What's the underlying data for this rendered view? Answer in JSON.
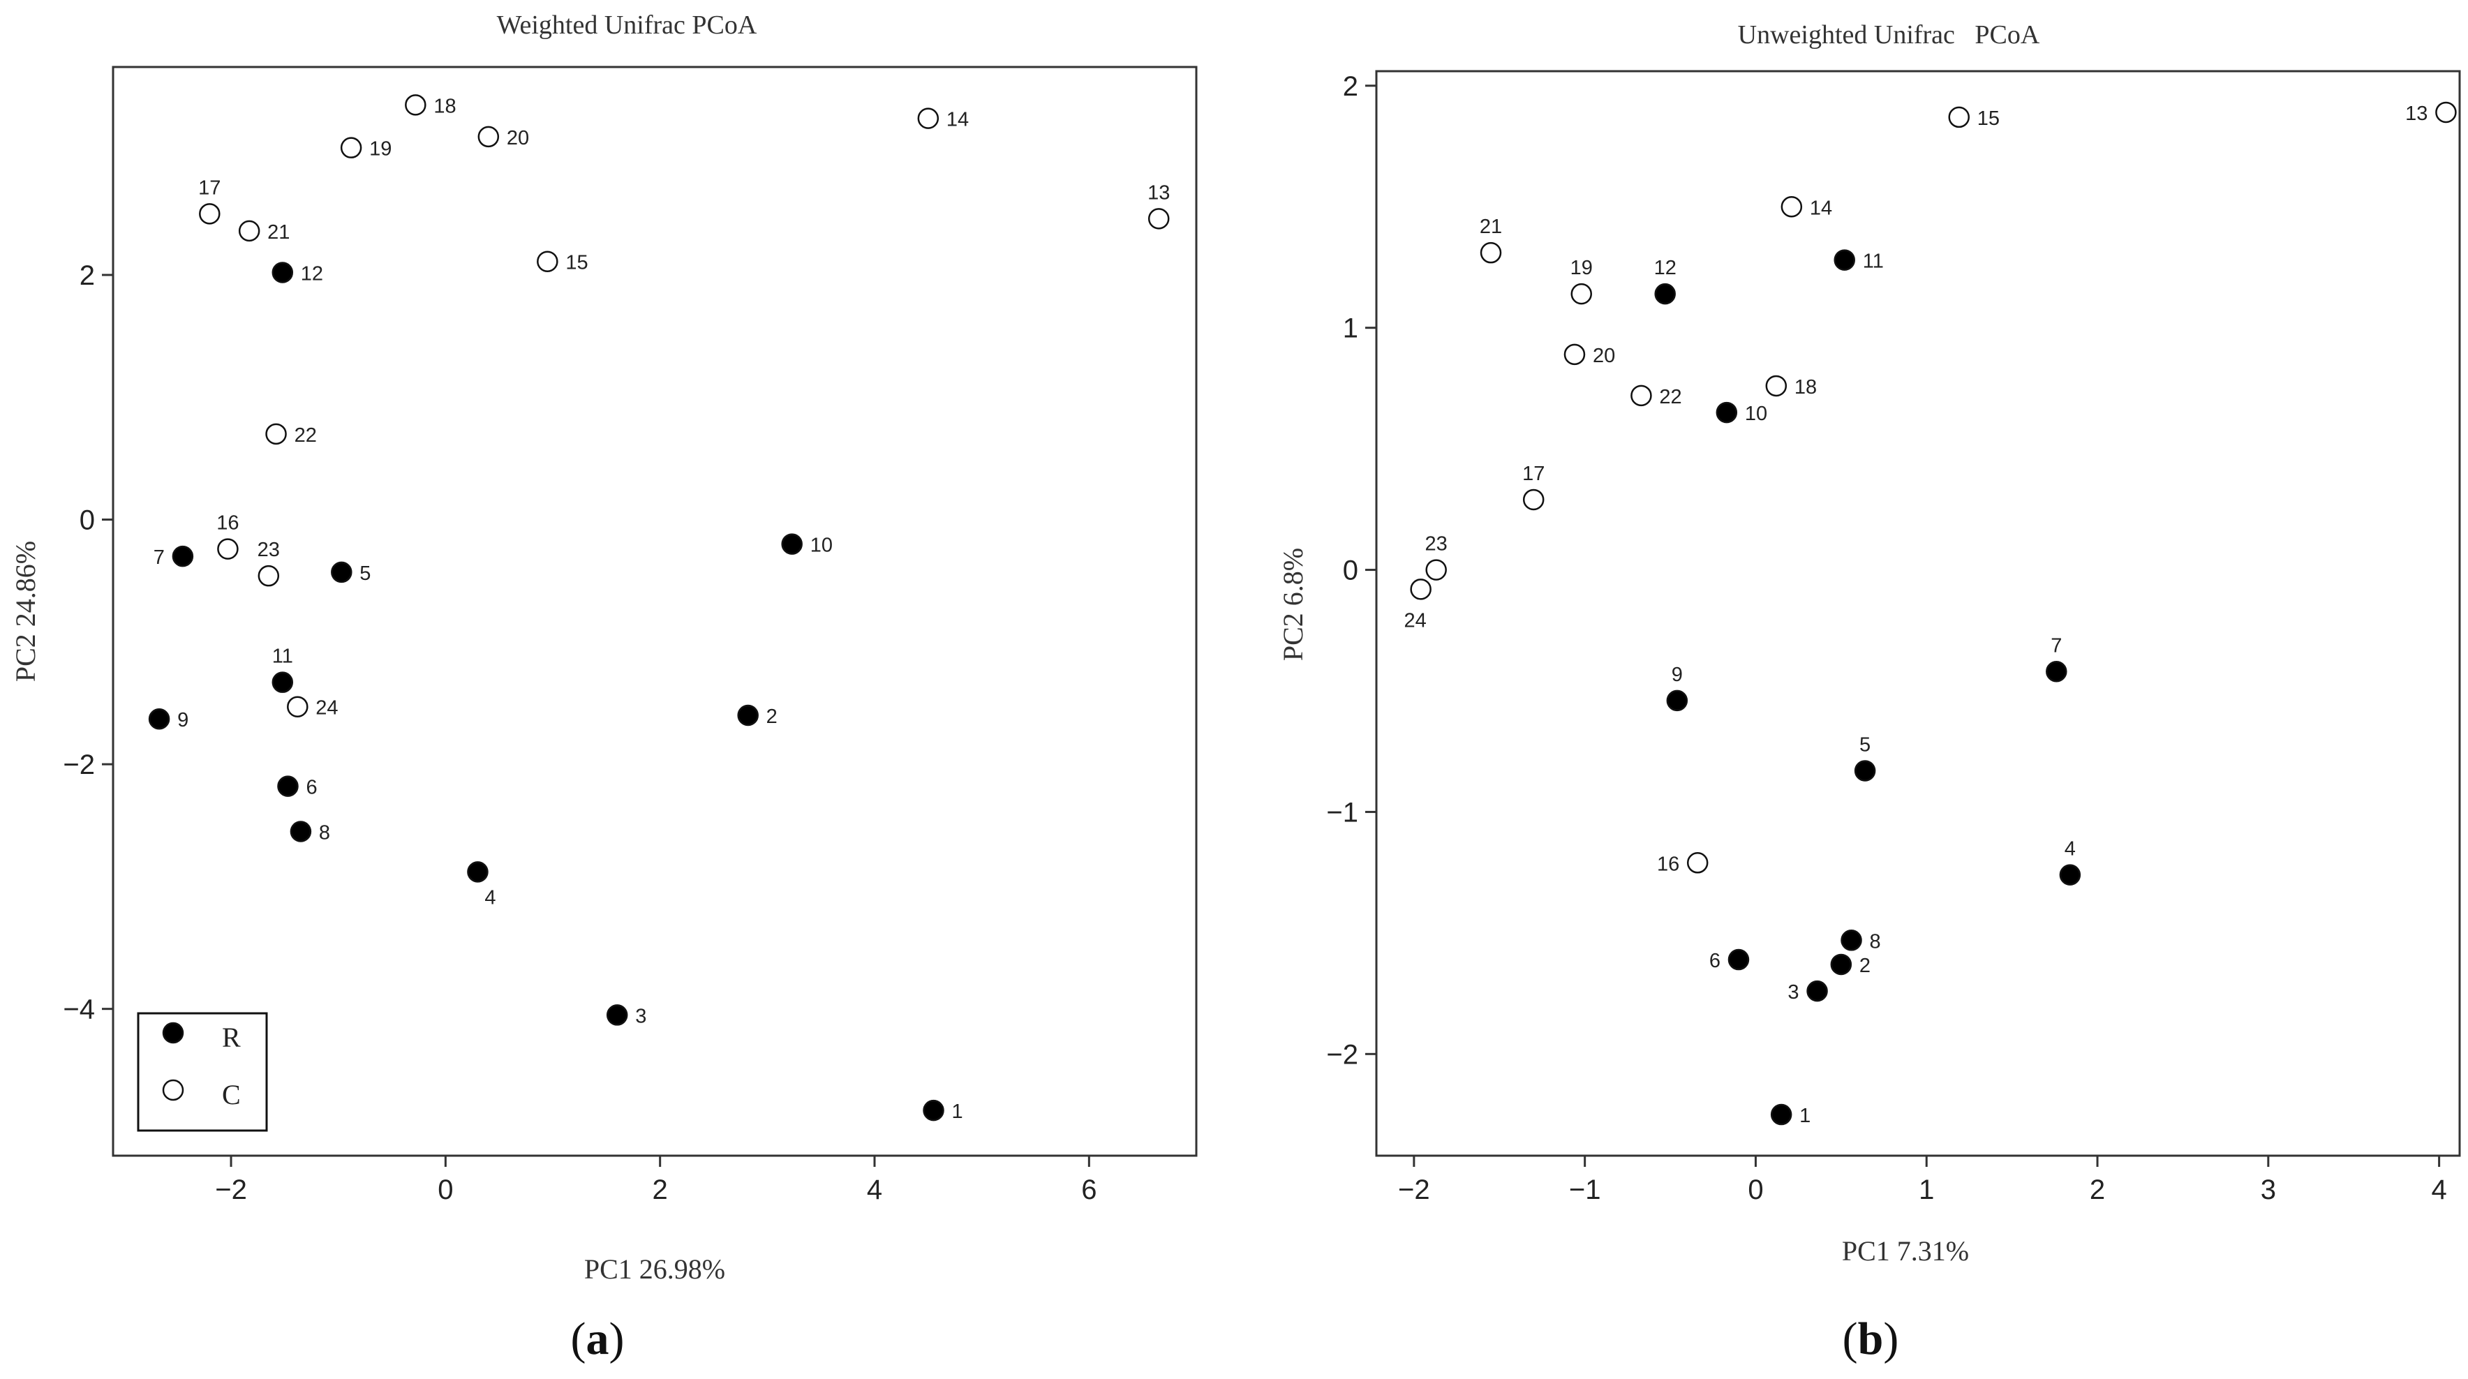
{
  "colors": {
    "R": "#000000",
    "C": "#ffffff",
    "stroke": "#111111",
    "axis": "#333333"
  },
  "chart_data": [
    {
      "type": "scatter",
      "panel": "a",
      "panel_label": "a",
      "title": "Weighted Unifrac PCoA",
      "xlabel": "PC1 26.98%",
      "ylabel": "PC2 24.86%",
      "xlim": [
        -3.1,
        7.0
      ],
      "ylim": [
        -5.2,
        3.7
      ],
      "xticks": [
        -2,
        0,
        2,
        4,
        6
      ],
      "yticks": [
        -4,
        -2,
        0,
        2
      ],
      "legend": {
        "position": "bottom-left",
        "entries": [
          {
            "name": "R",
            "group": "R"
          },
          {
            "name": "C",
            "group": "C"
          }
        ]
      },
      "points": [
        {
          "id": "1",
          "x": 4.55,
          "y": -4.83,
          "group": "R",
          "label_pos": "right"
        },
        {
          "id": "2",
          "x": 2.82,
          "y": -1.6,
          "group": "R",
          "label_pos": "right"
        },
        {
          "id": "3",
          "x": 1.6,
          "y": -4.05,
          "group": "R",
          "label_pos": "right"
        },
        {
          "id": "4",
          "x": 0.3,
          "y": -2.88,
          "group": "R",
          "label_pos": "below-right"
        },
        {
          "id": "5",
          "x": -0.97,
          "y": -0.43,
          "group": "R",
          "label_pos": "right"
        },
        {
          "id": "6",
          "x": -1.47,
          "y": -2.18,
          "group": "R",
          "label_pos": "right"
        },
        {
          "id": "7",
          "x": -2.45,
          "y": -0.3,
          "group": "R",
          "label_pos": "left"
        },
        {
          "id": "8",
          "x": -1.35,
          "y": -2.55,
          "group": "R",
          "label_pos": "right"
        },
        {
          "id": "9",
          "x": -2.67,
          "y": -1.63,
          "group": "R",
          "label_pos": "right"
        },
        {
          "id": "10",
          "x": 3.23,
          "y": -0.2,
          "group": "R",
          "label_pos": "right"
        },
        {
          "id": "11",
          "x": -1.52,
          "y": -1.33,
          "group": "R",
          "label_pos": "above"
        },
        {
          "id": "12",
          "x": -1.52,
          "y": 2.02,
          "group": "R",
          "label_pos": "right"
        },
        {
          "id": "13",
          "x": 6.65,
          "y": 2.46,
          "group": "C",
          "label_pos": "above"
        },
        {
          "id": "14",
          "x": 4.5,
          "y": 3.28,
          "group": "C",
          "label_pos": "right"
        },
        {
          "id": "15",
          "x": 0.95,
          "y": 2.11,
          "group": "C",
          "label_pos": "right"
        },
        {
          "id": "16",
          "x": -2.03,
          "y": -0.24,
          "group": "C",
          "label_pos": "above"
        },
        {
          "id": "17",
          "x": -2.2,
          "y": 2.5,
          "group": "C",
          "label_pos": "above"
        },
        {
          "id": "18",
          "x": -0.28,
          "y": 3.39,
          "group": "C",
          "label_pos": "right"
        },
        {
          "id": "19",
          "x": -0.88,
          "y": 3.04,
          "group": "C",
          "label_pos": "right"
        },
        {
          "id": "20",
          "x": 0.4,
          "y": 3.13,
          "group": "C",
          "label_pos": "right"
        },
        {
          "id": "21",
          "x": -1.83,
          "y": 2.36,
          "group": "C",
          "label_pos": "right"
        },
        {
          "id": "22",
          "x": -1.58,
          "y": 0.7,
          "group": "C",
          "label_pos": "right"
        },
        {
          "id": "23",
          "x": -1.65,
          "y": -0.46,
          "group": "C",
          "label_pos": "above"
        },
        {
          "id": "24",
          "x": -1.38,
          "y": -1.53,
          "group": "C",
          "label_pos": "right"
        }
      ]
    },
    {
      "type": "scatter",
      "panel": "b",
      "panel_label": "b",
      "title": "Unweighted Unifrac   PCoA",
      "xlabel": "PC1 7.31%",
      "ylabel": "PC2 6.8%",
      "xlim": [
        -2.22,
        4.12
      ],
      "ylim": [
        -2.42,
        2.06
      ],
      "xticks": [
        -2,
        -1,
        0,
        1,
        2,
        3,
        4
      ],
      "yticks": [
        -2,
        -1,
        0,
        1,
        2
      ],
      "points": [
        {
          "id": "1",
          "x": 0.15,
          "y": -2.25,
          "group": "R",
          "label_pos": "right"
        },
        {
          "id": "2",
          "x": 0.5,
          "y": -1.63,
          "group": "R",
          "label_pos": "right"
        },
        {
          "id": "3",
          "x": 0.36,
          "y": -1.74,
          "group": "R",
          "label_pos": "left"
        },
        {
          "id": "4",
          "x": 1.84,
          "y": -1.26,
          "group": "R",
          "label_pos": "above"
        },
        {
          "id": "5",
          "x": 0.64,
          "y": -0.83,
          "group": "R",
          "label_pos": "above"
        },
        {
          "id": "6",
          "x": -0.1,
          "y": -1.61,
          "group": "R",
          "label_pos": "left"
        },
        {
          "id": "7",
          "x": 1.76,
          "y": -0.42,
          "group": "R",
          "label_pos": "above"
        },
        {
          "id": "8",
          "x": 0.56,
          "y": -1.53,
          "group": "R",
          "label_pos": "right"
        },
        {
          "id": "9",
          "x": -0.46,
          "y": -0.54,
          "group": "R",
          "label_pos": "above"
        },
        {
          "id": "10",
          "x": -0.17,
          "y": 0.65,
          "group": "R",
          "label_pos": "right"
        },
        {
          "id": "11",
          "x": 0.52,
          "y": 1.28,
          "group": "R",
          "label_pos": "right"
        },
        {
          "id": "12",
          "x": -0.53,
          "y": 1.14,
          "group": "R",
          "label_pos": "above"
        },
        {
          "id": "13",
          "x": 4.04,
          "y": 1.89,
          "group": "C",
          "label_pos": "left"
        },
        {
          "id": "14",
          "x": 0.21,
          "y": 1.5,
          "group": "C",
          "label_pos": "right"
        },
        {
          "id": "15",
          "x": 1.19,
          "y": 1.87,
          "group": "C",
          "label_pos": "right"
        },
        {
          "id": "16",
          "x": -0.34,
          "y": -1.21,
          "group": "C",
          "label_pos": "left"
        },
        {
          "id": "17",
          "x": -1.3,
          "y": 0.29,
          "group": "C",
          "label_pos": "above"
        },
        {
          "id": "18",
          "x": 0.12,
          "y": 0.76,
          "group": "C",
          "label_pos": "right"
        },
        {
          "id": "19",
          "x": -1.02,
          "y": 1.14,
          "group": "C",
          "label_pos": "above"
        },
        {
          "id": "20",
          "x": -1.06,
          "y": 0.89,
          "group": "C",
          "label_pos": "right"
        },
        {
          "id": "21",
          "x": -1.55,
          "y": 1.31,
          "group": "C",
          "label_pos": "above"
        },
        {
          "id": "22",
          "x": -0.67,
          "y": 0.72,
          "group": "C",
          "label_pos": "right"
        },
        {
          "id": "23",
          "x": -1.87,
          "y": 0.0,
          "group": "C",
          "label_pos": "above"
        },
        {
          "id": "24",
          "x": -1.96,
          "y": -0.08,
          "group": "C",
          "label_pos": "below"
        }
      ]
    }
  ]
}
